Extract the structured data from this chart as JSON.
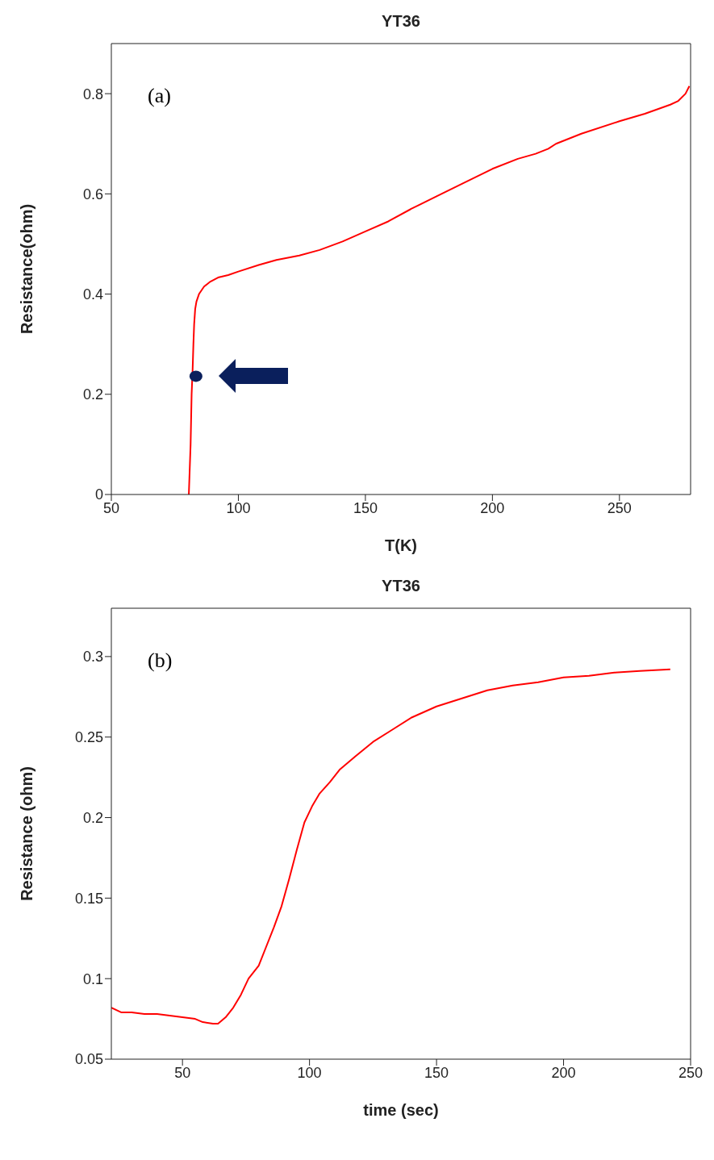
{
  "chart_data": [
    {
      "type": "line",
      "title": "YT36",
      "xlabel": "T(K)",
      "ylabel": "Resistance(ohm)",
      "annotations": [
        "(a)"
      ],
      "xlim": [
        50,
        278
      ],
      "xticks": [
        50,
        100,
        150,
        200,
        250
      ],
      "ylim": [
        0,
        0.9
      ],
      "yticks": [
        0,
        0.2,
        0.4,
        0.6,
        0.8
      ],
      "grid": false,
      "legend": false,
      "series": [
        {
          "color": "#ff0000",
          "x": [
            80.5,
            81.2,
            81.6,
            82.0,
            82.3,
            82.6,
            83.0,
            83.5,
            84.5,
            86.5,
            89,
            92,
            96,
            100,
            108,
            115,
            124,
            132,
            141,
            150,
            159,
            168,
            178,
            188,
            200,
            210,
            217,
            222,
            225,
            235,
            250,
            260,
            270,
            273,
            276,
            277.5
          ],
          "values": [
            0,
            0.1,
            0.2,
            0.25,
            0.3,
            0.34,
            0.37,
            0.385,
            0.4,
            0.415,
            0.425,
            0.433,
            0.438,
            0.445,
            0.458,
            0.468,
            0.477,
            0.488,
            0.505,
            0.525,
            0.545,
            0.57,
            0.595,
            0.62,
            0.65,
            0.67,
            0.68,
            0.69,
            0.7,
            0.72,
            0.745,
            0.76,
            0.778,
            0.785,
            0.8,
            0.815
          ]
        },
        {
          "type": "scatter",
          "color": "#0a1f5c",
          "x": [
            83.3
          ],
          "values": [
            0.236
          ]
        }
      ]
    },
    {
      "type": "line",
      "title": "YT36",
      "xlabel": "time (sec)",
      "ylabel": "Resistance (ohm)",
      "annotations": [
        "(b)"
      ],
      "xlim": [
        22,
        250
      ],
      "xticks": [
        50,
        100,
        150,
        200,
        250
      ],
      "ylim": [
        0.05,
        0.33
      ],
      "yticks": [
        0.05,
        0.1,
        0.15,
        0.2,
        0.25,
        0.3
      ],
      "grid": false,
      "legend": false,
      "series": [
        {
          "color": "#ff0000",
          "x": [
            22,
            26,
            30,
            35,
            40,
            45,
            50,
            55,
            58,
            62,
            64,
            67,
            70,
            73,
            76,
            80,
            83,
            86,
            89,
            92,
            95,
            98,
            101,
            104,
            108,
            112,
            118,
            125,
            132,
            140,
            150,
            160,
            170,
            180,
            190,
            200,
            210,
            220,
            230,
            242
          ],
          "values": [
            0.082,
            0.079,
            0.079,
            0.078,
            0.078,
            0.077,
            0.076,
            0.075,
            0.073,
            0.072,
            0.072,
            0.076,
            0.082,
            0.09,
            0.1,
            0.108,
            0.12,
            0.132,
            0.145,
            0.162,
            0.18,
            0.197,
            0.207,
            0.215,
            0.222,
            0.23,
            0.238,
            0.247,
            0.254,
            0.262,
            0.269,
            0.274,
            0.279,
            0.282,
            0.284,
            0.287,
            0.288,
            0.29,
            0.291,
            0.292
          ]
        }
      ]
    }
  ]
}
